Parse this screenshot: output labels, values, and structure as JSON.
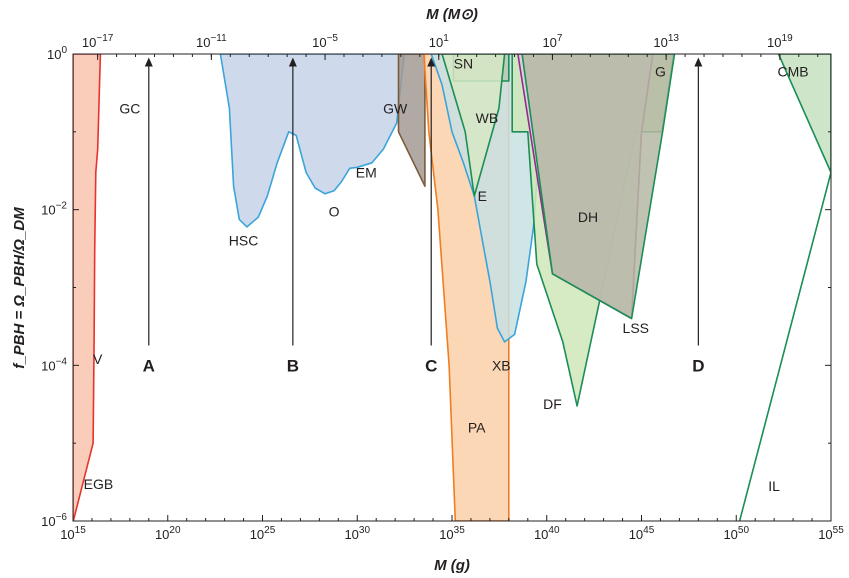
{
  "chart_data": {
    "type": "area",
    "title": "",
    "xlabel": "M (g)",
    "ylabel": "f_PBH = Ω_PBH/Ω_DM",
    "x2label": "M (M⊙)",
    "x_scale": "log",
    "y_scale": "log",
    "xlim": [
      1000000000000000.0,
      1e+55
    ],
    "ylim": [
      1e-06,
      1
    ],
    "x_ticks": [
      {
        "value": 1000000000000000.0,
        "base": "10",
        "exp": "15"
      },
      {
        "value": 1e+20,
        "base": "10",
        "exp": "20"
      },
      {
        "value": 1e+25,
        "base": "10",
        "exp": "25"
      },
      {
        "value": 1e+30,
        "base": "10",
        "exp": "30"
      },
      {
        "value": 1e+35,
        "base": "10",
        "exp": "35"
      },
      {
        "value": 1e+40,
        "base": "10",
        "exp": "40"
      },
      {
        "value": 1e+45,
        "base": "10",
        "exp": "45"
      },
      {
        "value": 1e+50,
        "base": "10",
        "exp": "50"
      },
      {
        "value": 1e+55,
        "base": "10",
        "exp": "55"
      }
    ],
    "x2_ticks": [
      {
        "value": 2e+16,
        "base": "10",
        "exp": "−17"
      },
      {
        "value": 2e+22,
        "base": "10",
        "exp": "−11"
      },
      {
        "value": 2e+28,
        "base": "10",
        "exp": "−5"
      },
      {
        "value": 2e+34,
        "base": "10",
        "exp": "1"
      },
      {
        "value": 2e+40,
        "base": "10",
        "exp": "7"
      },
      {
        "value": 2e+46,
        "base": "10",
        "exp": "13"
      },
      {
        "value": 2e+52,
        "base": "10",
        "exp": "19"
      }
    ],
    "y_ticks": [
      {
        "value": 1,
        "base": "10",
        "exp": "0"
      },
      {
        "value": 0.01,
        "base": "10",
        "exp": "−2"
      },
      {
        "value": 0.0001,
        "base": "10",
        "exp": "−4"
      },
      {
        "value": 1e-06,
        "base": "10",
        "exp": "−6"
      }
    ],
    "series": [
      {
        "name": "EGB / V / GC",
        "fill": "#f8c4ae",
        "stroke": "#e8332c",
        "points": [
          [
            1000000000000000.0,
            1e-06
          ],
          [
            1000000000000000.0,
            1
          ],
          [
            2.8e+16,
            1
          ],
          [
            2e+16,
            0.06
          ],
          [
            1.6e+16,
            0.03
          ],
          [
            1.4e+16,
            0.003
          ],
          [
            1.3e+16,
            0.0002
          ],
          [
            1.15e+16,
            1e-05
          ],
          [
            1040000000000000.0,
            1e-06
          ]
        ]
      },
      {
        "name": "HSC / O / EM",
        "fill": "#c5d4e7",
        "stroke": "#3ba4d9",
        "points": [
          [
            6e+22,
            1
          ],
          [
            1.8e+23,
            0.2
          ],
          [
            3e+23,
            0.02
          ],
          [
            6e+23,
            0.0075
          ],
          [
            1.5e+24,
            0.006
          ],
          [
            6e+24,
            0.008
          ],
          [
            1.8e+25,
            0.015
          ],
          [
            6e+25,
            0.04
          ],
          [
            2.4e+26,
            0.1
          ],
          [
            6e+26,
            0.09
          ],
          [
            2e+27,
            0.03
          ],
          [
            6e+27,
            0.019
          ],
          [
            2e+28,
            0.016
          ],
          [
            6e+28,
            0.0175
          ],
          [
            1.5e+29,
            0.023
          ],
          [
            4e+29,
            0.034
          ],
          [
            1e+30,
            0.035
          ],
          [
            6e+30,
            0.04
          ],
          [
            2.4e+31,
            0.06
          ],
          [
            1.2e+32,
            0.13
          ],
          [
            3e+32,
            1
          ]
        ]
      },
      {
        "name": "GW",
        "fill": "#a39a93",
        "stroke": "#7a5a3a",
        "points": [
          [
            1.5e+32,
            1
          ],
          [
            3.7e+33,
            1
          ],
          [
            3.7e+33,
            0.02
          ],
          [
            1.5e+32,
            0.1
          ]
        ]
      },
      {
        "name": "PA",
        "fill": "#fbd0a8",
        "stroke": "#ef7d21",
        "points": [
          [
            3.3e+33,
            1
          ],
          [
            4e+34,
            1
          ],
          [
            1e+38,
            1
          ],
          [
            1e+38,
            1e-06
          ],
          [
            1.5e+35,
            1e-06
          ],
          [
            7e+34,
            0.0001
          ],
          [
            1.8e+34,
            0.01
          ],
          [
            6e+33,
            0.1
          ],
          [
            3.3e+33,
            1
          ]
        ]
      },
      {
        "name": "XB",
        "fill": "#c8e0e2",
        "stroke": "#3ba4d9",
        "points": [
          [
            8e+33,
            1
          ],
          [
            3e+34,
            0.4
          ],
          [
            1e+35,
            0.1
          ],
          [
            4e+35,
            0.04
          ],
          [
            1.5e+36,
            0.015
          ],
          [
            4e+36,
            0.004
          ],
          [
            1e+37,
            0.0012
          ],
          [
            2.5e+37,
            0.0003
          ],
          [
            6e+37,
            0.0002
          ],
          [
            2e+38,
            0.00025
          ],
          [
            8e+38,
            0.0012
          ],
          [
            2e+39,
            0.006
          ],
          [
            4e+39,
            0.06
          ],
          [
            1.2e+40,
            1
          ]
        ]
      },
      {
        "name": "SN",
        "fill": "#b9c9b0",
        "stroke": "#1b8e57",
        "points": [
          [
            1.2e+35,
            1
          ],
          [
            1e+38,
            1
          ],
          [
            1e+38,
            0.45
          ],
          [
            1.2e+35,
            0.45
          ]
        ]
      },
      {
        "name": "E",
        "fill": "#d6e7c5",
        "stroke": "#1b8e57",
        "points": [
          [
            3e+34,
            1
          ],
          [
            5e+35,
            0.1
          ],
          [
            1.5e+36,
            0.015
          ],
          [
            3e+37,
            0.2
          ],
          [
            6e+37,
            1
          ]
        ]
      },
      {
        "name": "WB / DF",
        "fill": "#cfe8b8",
        "stroke": "#1b8e57",
        "points": [
          [
            1.5e+38,
            1
          ],
          [
            1.5e+38,
            0.1
          ],
          [
            1e+39,
            0.1
          ],
          [
            3e+39,
            0.002
          ],
          [
            7e+40,
            0.0002
          ],
          [
            4e+41,
            3e-05
          ],
          [
            5e+44,
            0.1
          ],
          [
            1.2e+46,
            0.1
          ],
          [
            5e+46,
            1
          ]
        ]
      },
      {
        "name": "DH / LSS",
        "fill": "#e0cbe0",
        "stroke": "#932c8d",
        "points": [
          [
            3e+38,
            1
          ],
          [
            4e+45,
            1
          ],
          [
            1e+45,
            0.1
          ],
          [
            3e+44,
            0.0004
          ],
          [
            2e+40,
            0.0015
          ],
          [
            3e+38,
            1
          ]
        ]
      },
      {
        "name": "G",
        "fill": "#b5b8a3",
        "stroke": "#1b8e57",
        "points": [
          [
            5e+38,
            1
          ],
          [
            5.5e+46,
            1
          ],
          [
            1.3e+46,
            0.1
          ],
          [
            3e+44,
            0.0004
          ],
          [
            2e+40,
            0.0015
          ]
        ]
      },
      {
        "name": "CMB",
        "fill": "#c5e1c0",
        "stroke": "#1b8e57",
        "points": [
          [
            1.7e+52,
            1
          ],
          [
            1e+55,
            1
          ],
          [
            1e+55,
            0.03
          ],
          [
            1.7e+52,
            1
          ]
        ]
      },
      {
        "name": "IL",
        "fill": "none",
        "stroke": "#1b8e57",
        "points": [
          [
            1.5e+50,
            1e-06
          ],
          [
            1e+55,
            0.03
          ]
        ]
      }
    ],
    "annotations": [
      {
        "text": "GC",
        "x": 1e+18,
        "y": 0.2
      },
      {
        "text": "V",
        "x": 2e+16,
        "y": 0.00012
      },
      {
        "text": "EGB",
        "x": 2.2e+16,
        "y": 3e-06
      },
      {
        "text": "HSC",
        "x": 1e+24,
        "y": 0.004
      },
      {
        "text": "O",
        "x": 6e+28,
        "y": 0.0095
      },
      {
        "text": "EM",
        "x": 3e+30,
        "y": 0.03
      },
      {
        "text": "GW",
        "x": 1e+32,
        "y": 0.2
      },
      {
        "text": "SN",
        "x": 4e+35,
        "y": 0.75
      },
      {
        "text": "WB",
        "x": 7e+36,
        "y": 0.15
      },
      {
        "text": "E",
        "x": 4e+36,
        "y": 0.015
      },
      {
        "text": "G",
        "x": 1e+46,
        "y": 0.6
      },
      {
        "text": "CMB",
        "x": 1e+53,
        "y": 0.6
      },
      {
        "text": "DH",
        "x": 1.5e+42,
        "y": 0.008
      },
      {
        "text": "LSS",
        "x": 5e+44,
        "y": 0.0003
      },
      {
        "text": "XB",
        "x": 4e+37,
        "y": 0.0001
      },
      {
        "text": "DF",
        "x": 2e+40,
        "y": 3.2e-05
      },
      {
        "text": "PA",
        "x": 2e+36,
        "y": 1.6e-05
      },
      {
        "text": "IL",
        "x": 1e+52,
        "y": 2.8e-06
      }
    ],
    "arrows": [
      {
        "label": "A",
        "x": 1e+19
      },
      {
        "label": "B",
        "x": 4e+26
      },
      {
        "label": "C",
        "x": 8e+33
      },
      {
        "label": "D",
        "x": 1e+48
      }
    ],
    "grid": false,
    "legend": "none"
  }
}
